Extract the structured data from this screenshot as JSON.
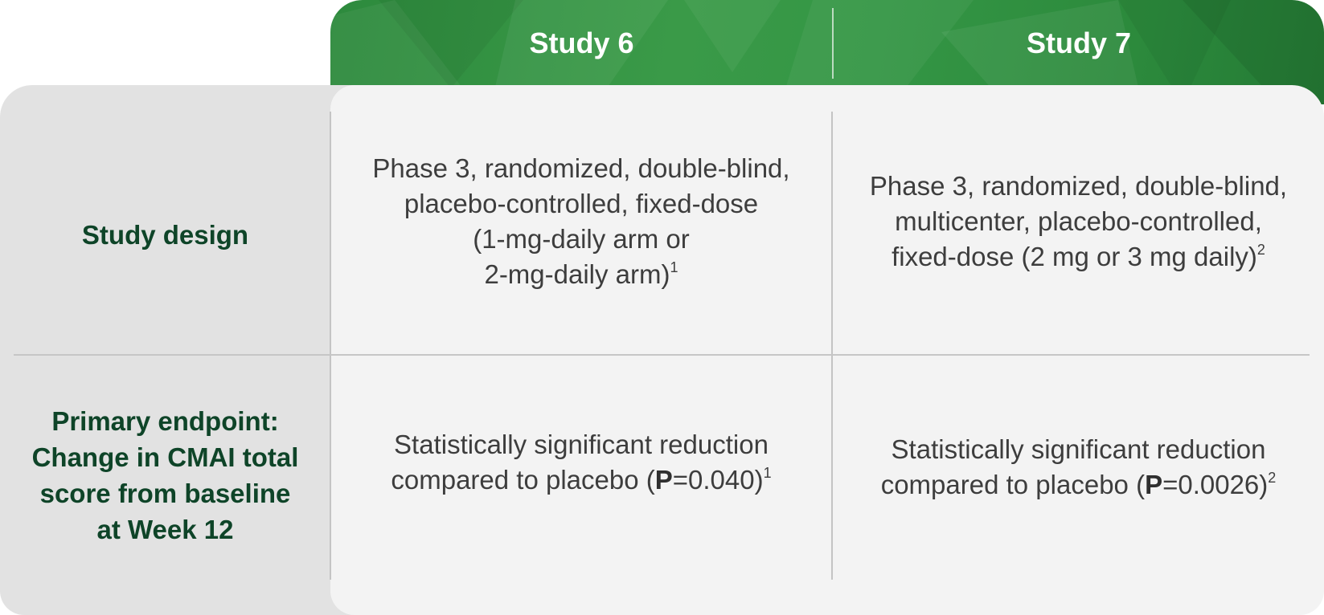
{
  "columns": {
    "study6": "Study 6",
    "study7": "Study 7"
  },
  "rows": {
    "design": {
      "label": "Study design",
      "study6": {
        "lines": [
          "Phase 3, randomized, double-blind,",
          "placebo-controlled, fixed-dose",
          "(1-mg-daily arm or",
          "2-mg-daily arm)"
        ],
        "ref": "1"
      },
      "study7": {
        "lines": [
          "Phase 3, randomized, double-blind,",
          "multicenter, placebo-controlled,",
          "fixed-dose (2 mg or 3 mg daily)"
        ],
        "ref": "2"
      }
    },
    "endpoint": {
      "label_lines": [
        "Primary endpoint:",
        "Change in CMAI total",
        "score from baseline",
        "at Week 12"
      ],
      "study6": {
        "line1": "Statistically significant reduction",
        "prefix": "compared to placebo (",
        "p_label": "P",
        "p_value": "=0.040)",
        "ref": "1"
      },
      "study7": {
        "line1": "Statistically significant reduction",
        "prefix": "compared to placebo (",
        "p_label": "P",
        "p_value": "=0.0026)",
        "ref": "2"
      }
    }
  },
  "colors": {
    "header_green": "#349645",
    "label_green": "#0e4428",
    "row_header_bg": "#e2e2e2",
    "cell_bg": "#f3f3f3",
    "body_text": "#3d3d3d"
  }
}
